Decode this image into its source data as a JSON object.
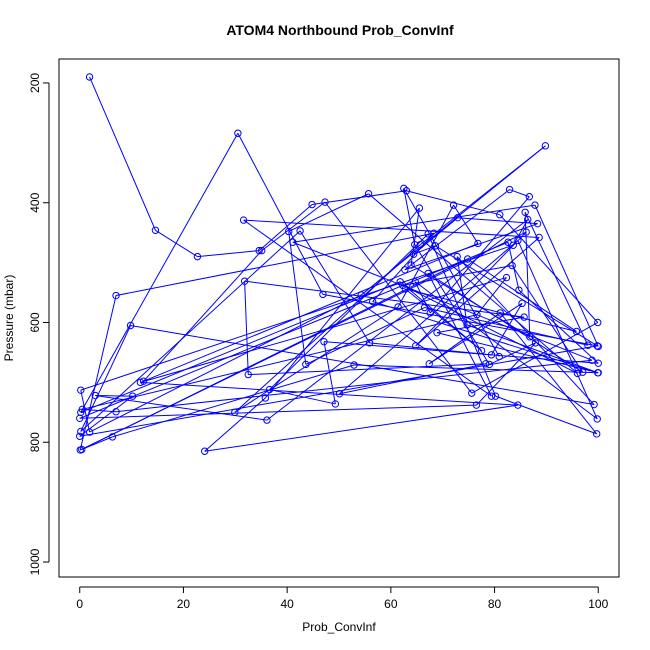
{
  "chart_data": {
    "type": "line",
    "title": "ATOM4 Northbound Prob_ConvInf",
    "xlabel": "Prob_ConvInf",
    "ylabel": "Pressure (mbar)",
    "xlim": [
      -4,
      104
    ],
    "ylim": [
      1025,
      160
    ],
    "y_reversed": true,
    "x_ticks": [
      0,
      20,
      40,
      60,
      80,
      100
    ],
    "y_ticks": [
      200,
      400,
      600,
      800,
      1000
    ],
    "grid": false,
    "series_color": "#0000ff",
    "series": [
      {
        "markers": "circle-open",
        "points": [
          [
            1.9,
            190
          ],
          [
            14.6,
            446
          ],
          [
            22.7,
            490
          ],
          [
            34.6,
            480
          ],
          [
            44.8,
            403
          ],
          [
            63.0,
            380
          ],
          [
            81.0,
            420
          ],
          [
            99.9,
            600
          ],
          [
            75.6,
            718
          ],
          [
            47.3,
            399
          ],
          [
            35.1,
            480
          ],
          [
            12.3,
            698
          ],
          [
            76.8,
            468
          ],
          [
            72.1,
            404
          ],
          [
            61.4,
            574
          ],
          [
            29.9,
            750
          ],
          [
            65.7,
            470
          ],
          [
            89.8,
            305
          ],
          [
            54.3,
            554
          ],
          [
            1.9,
            783
          ],
          [
            0.2,
            713
          ],
          [
            83.6,
            471
          ],
          [
            86.4,
            428
          ],
          [
            36.1,
            763
          ],
          [
            3.0,
            722
          ],
          [
            10.2,
            723
          ],
          [
            0.0,
            790
          ],
          [
            99.8,
            639
          ],
          [
            46.9,
            553
          ],
          [
            30.5,
            284
          ],
          [
            0.2,
            750
          ],
          [
            61.8,
            532
          ],
          [
            77.5,
            647
          ],
          [
            62.8,
            544
          ],
          [
            95.8,
            615
          ],
          [
            74.8,
            494
          ],
          [
            0.4,
            812
          ],
          [
            6.3,
            791
          ],
          [
            52.9,
            671
          ],
          [
            99.9,
            684
          ],
          [
            56.5,
            565
          ],
          [
            68.3,
            451
          ],
          [
            7.0,
            555
          ],
          [
            0.1,
            813
          ],
          [
            86.1,
            449
          ],
          [
            64.8,
            639
          ],
          [
            88.6,
            458
          ],
          [
            31.6,
            429
          ],
          [
            79.4,
            723
          ],
          [
            67.2,
            518
          ],
          [
            97.0,
            683
          ],
          [
            83.4,
            505
          ],
          [
            62.3,
            538
          ],
          [
            96.0,
            685
          ],
          [
            55.7,
            385
          ],
          [
            40.3,
            448
          ],
          [
            43.6,
            670
          ],
          [
            66.5,
            575
          ],
          [
            98.0,
            638
          ],
          [
            85.9,
            416
          ],
          [
            86.8,
            624
          ],
          [
            63.9,
            504
          ],
          [
            65.5,
            409
          ],
          [
            35.8,
            726
          ],
          [
            24.1,
            815
          ],
          [
            84.5,
            738
          ],
          [
            11.7,
            700
          ],
          [
            82.3,
            525
          ],
          [
            76.6,
            587
          ],
          [
            0.5,
            745
          ],
          [
            7.0,
            749
          ],
          [
            98.8,
            663
          ],
          [
            41.1,
            466
          ],
          [
            87.8,
            404
          ],
          [
            100.0,
            640
          ],
          [
            68.6,
            472
          ],
          [
            64.4,
            486
          ],
          [
            72.9,
            425
          ],
          [
            88.3,
            435
          ],
          [
            62.7,
            512
          ],
          [
            82.9,
            378
          ],
          [
            86.7,
            390
          ],
          [
            67.6,
            584
          ],
          [
            64.7,
            532
          ],
          [
            99.8,
            761
          ],
          [
            84.5,
            463
          ],
          [
            50.1,
            719
          ],
          [
            78.3,
            669
          ],
          [
            32.5,
            687
          ],
          [
            31.8,
            531
          ],
          [
            85.7,
            591
          ],
          [
            68.9,
            617
          ],
          [
            100.0,
            684
          ],
          [
            74.7,
            604
          ],
          [
            72.8,
            490
          ],
          [
            99.2,
            737
          ],
          [
            9.8,
            605
          ],
          [
            0.2,
            782
          ],
          [
            42.5,
            447
          ],
          [
            55.9,
            634
          ],
          [
            79.4,
            654
          ],
          [
            85.3,
            568
          ],
          [
            67.4,
            669
          ],
          [
            81.1,
            584
          ],
          [
            99.7,
            786
          ],
          [
            80.2,
            723
          ],
          [
            67.2,
            452
          ],
          [
            36.6,
            712
          ],
          [
            49.3,
            736
          ],
          [
            47.1,
            632
          ],
          [
            100.0,
            668
          ],
          [
            84.7,
            546
          ],
          [
            82.6,
            466
          ],
          [
            0.0,
            760
          ],
          [
            76.5,
            738
          ],
          [
            87.9,
            634
          ],
          [
            79.0,
            670
          ],
          [
            64.6,
            470
          ],
          [
            62.5,
            376
          ],
          [
            80.9,
            657
          ]
        ]
      }
    ]
  }
}
